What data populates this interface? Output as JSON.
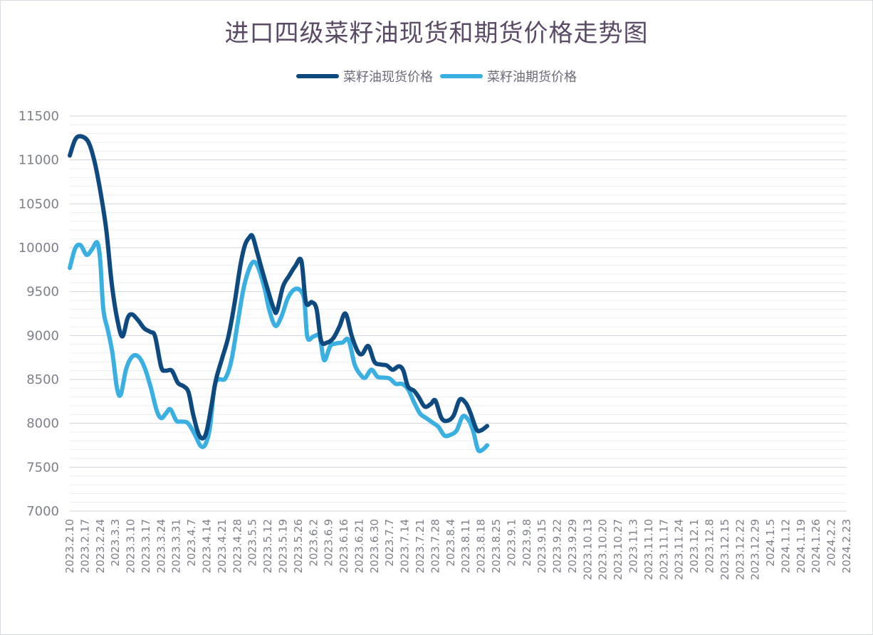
{
  "chart_data": {
    "type": "line",
    "title": "进口四级菜籽油现货和期货价格走势图",
    "xlabel": "",
    "ylabel": "",
    "ylim": [
      7000,
      11500
    ],
    "yticks": [
      7000,
      7500,
      8000,
      8500,
      9000,
      9500,
      10000,
      10500,
      11000,
      11500
    ],
    "grid": "horizontal",
    "legend_position": "top-center",
    "categories": [
      "2023.2.10",
      "2023.2.17",
      "2023.2.24",
      "2023.3.3",
      "2023.3.10",
      "2023.3.17",
      "2023.3.24",
      "2023.3.31",
      "2023.4.7",
      "2023.4.14",
      "2023.4.21",
      "2023.4.28",
      "2023.5.5",
      "2023.5.12",
      "2023.5.19",
      "2023.5.26",
      "2023.6.2",
      "2023.6.9",
      "2023.6.16",
      "2023.6.21",
      "2023.6.30",
      "2023.7.7",
      "2023.7.14",
      "2023.7.21",
      "2023.7.28",
      "2023.8.4",
      "2023.8.11",
      "2023.8.18",
      "2023.8.25",
      "2023.9.1",
      "2023.9.8",
      "2023.9.15",
      "2023.9.22",
      "2023.9.29",
      "2023.10.13",
      "2023.10.20",
      "2023.10.27",
      "2023.11.3",
      "2023.11.10",
      "2023.11.17",
      "2023.11.24",
      "2023.12.1",
      "2023.12.8",
      "2023.12.15",
      "2023.12.22",
      "2023.12.29",
      "2024.1.5",
      "2024.1.12",
      "2024.1.19",
      "2024.1.26",
      "2024.2.2",
      "2024.2.23"
    ],
    "series": [
      {
        "name": "菜籽油现货价格",
        "color": "#0e4a80",
        "values": [
          [
            0,
            11050
          ],
          [
            0.35,
            11230
          ],
          [
            0.7,
            11270
          ],
          [
            1.2,
            11210
          ],
          [
            1.6,
            11000
          ],
          [
            2.0,
            10650
          ],
          [
            2.4,
            10200
          ],
          [
            2.75,
            9600
          ],
          [
            3.1,
            9200
          ],
          [
            3.45,
            8990
          ],
          [
            3.8,
            9200
          ],
          [
            4.1,
            9240
          ],
          [
            4.5,
            9170
          ],
          [
            4.9,
            9080
          ],
          [
            5.3,
            9040
          ],
          [
            5.6,
            8990
          ],
          [
            6.0,
            8640
          ],
          [
            6.3,
            8600
          ],
          [
            6.7,
            8600
          ],
          [
            7.1,
            8460
          ],
          [
            7.5,
            8420
          ],
          [
            7.8,
            8350
          ],
          [
            8.1,
            8100
          ],
          [
            8.45,
            7880
          ],
          [
            8.75,
            7830
          ],
          [
            9.0,
            7920
          ],
          [
            9.3,
            8200
          ],
          [
            9.6,
            8500
          ],
          [
            10.0,
            8740
          ],
          [
            10.4,
            8980
          ],
          [
            10.8,
            9350
          ],
          [
            11.2,
            9800
          ],
          [
            11.5,
            10030
          ],
          [
            11.8,
            10120
          ],
          [
            12.0,
            10130
          ],
          [
            12.3,
            9950
          ],
          [
            12.6,
            9760
          ],
          [
            13.0,
            9520
          ],
          [
            13.4,
            9300
          ],
          [
            13.6,
            9280
          ],
          [
            14.0,
            9560
          ],
          [
            14.4,
            9680
          ],
          [
            14.8,
            9790
          ],
          [
            15.2,
            9850
          ],
          [
            15.5,
            9380
          ],
          [
            15.9,
            9380
          ],
          [
            16.2,
            9300
          ],
          [
            16.5,
            8940
          ],
          [
            16.9,
            8920
          ],
          [
            17.3,
            8970
          ],
          [
            17.7,
            9100
          ],
          [
            18.1,
            9250
          ],
          [
            18.5,
            9000
          ],
          [
            18.9,
            8820
          ],
          [
            19.2,
            8790
          ],
          [
            19.6,
            8880
          ],
          [
            20.0,
            8700
          ],
          [
            20.4,
            8670
          ],
          [
            20.8,
            8660
          ],
          [
            21.2,
            8610
          ],
          [
            21.6,
            8650
          ],
          [
            21.9,
            8600
          ],
          [
            22.2,
            8420
          ],
          [
            22.6,
            8370
          ],
          [
            22.9,
            8300
          ],
          [
            23.3,
            8190
          ],
          [
            23.7,
            8220
          ],
          [
            24.0,
            8260
          ],
          [
            24.4,
            8060
          ],
          [
            24.8,
            8030
          ],
          [
            25.2,
            8090
          ],
          [
            25.6,
            8270
          ],
          [
            26.0,
            8230
          ],
          [
            26.3,
            8120
          ],
          [
            26.7,
            7930
          ],
          [
            27.0,
            7920
          ],
          [
            27.4,
            7970
          ]
        ]
      },
      {
        "name": "菜籽油期货价格",
        "color": "#3ab0e2",
        "values": [
          [
            0,
            9770
          ],
          [
            0.35,
            9990
          ],
          [
            0.7,
            10030
          ],
          [
            1.1,
            9920
          ],
          [
            1.45,
            9980
          ],
          [
            1.8,
            10060
          ],
          [
            2.0,
            9850
          ],
          [
            2.2,
            9300
          ],
          [
            2.5,
            9060
          ],
          [
            2.8,
            8800
          ],
          [
            3.1,
            8400
          ],
          [
            3.35,
            8330
          ],
          [
            3.7,
            8620
          ],
          [
            4.1,
            8760
          ],
          [
            4.5,
            8760
          ],
          [
            4.9,
            8640
          ],
          [
            5.3,
            8420
          ],
          [
            5.7,
            8150
          ],
          [
            6.0,
            8060
          ],
          [
            6.3,
            8110
          ],
          [
            6.6,
            8160
          ],
          [
            7.0,
            8030
          ],
          [
            7.3,
            8020
          ],
          [
            7.7,
            8010
          ],
          [
            8.0,
            7940
          ],
          [
            8.3,
            7840
          ],
          [
            8.6,
            7740
          ],
          [
            8.9,
            7760
          ],
          [
            9.2,
            7950
          ],
          [
            9.5,
            8420
          ],
          [
            9.8,
            8500
          ],
          [
            10.2,
            8510
          ],
          [
            10.6,
            8710
          ],
          [
            11.0,
            9120
          ],
          [
            11.4,
            9530
          ],
          [
            11.8,
            9770
          ],
          [
            12.1,
            9840
          ],
          [
            12.4,
            9760
          ],
          [
            12.8,
            9530
          ],
          [
            13.1,
            9290
          ],
          [
            13.5,
            9110
          ],
          [
            13.9,
            9220
          ],
          [
            14.3,
            9420
          ],
          [
            14.7,
            9520
          ],
          [
            15.1,
            9520
          ],
          [
            15.4,
            9400
          ],
          [
            15.6,
            8980
          ],
          [
            16.0,
            8990
          ],
          [
            16.4,
            8990
          ],
          [
            16.7,
            8720
          ],
          [
            17.1,
            8880
          ],
          [
            17.5,
            8910
          ],
          [
            17.9,
            8920
          ],
          [
            18.3,
            8950
          ],
          [
            18.7,
            8670
          ],
          [
            19.1,
            8550
          ],
          [
            19.4,
            8520
          ],
          [
            19.8,
            8610
          ],
          [
            20.2,
            8530
          ],
          [
            20.6,
            8520
          ],
          [
            21.0,
            8510
          ],
          [
            21.4,
            8450
          ],
          [
            21.8,
            8450
          ],
          [
            22.2,
            8390
          ],
          [
            22.6,
            8240
          ],
          [
            23.0,
            8110
          ],
          [
            23.4,
            8060
          ],
          [
            23.8,
            8010
          ],
          [
            24.2,
            7960
          ],
          [
            24.6,
            7860
          ],
          [
            25.0,
            7870
          ],
          [
            25.4,
            7920
          ],
          [
            25.8,
            8080
          ],
          [
            26.2,
            8030
          ],
          [
            26.5,
            7900
          ],
          [
            26.8,
            7700
          ],
          [
            27.1,
            7700
          ],
          [
            27.4,
            7750
          ]
        ]
      }
    ]
  }
}
